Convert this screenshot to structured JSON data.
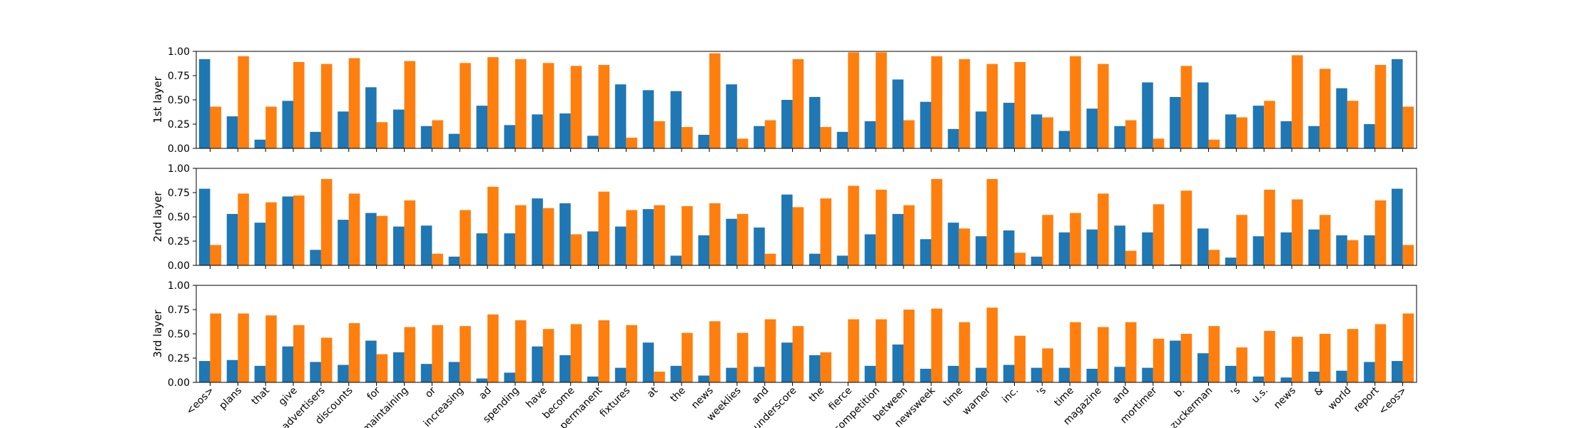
{
  "chart_data": [
    {
      "type": "bar",
      "ylabel": "1st layer",
      "ylim": [
        0,
        1
      ],
      "yticks": [
        "0.00",
        "0.25",
        "0.50",
        "0.75",
        "1.00"
      ],
      "categories": [
        "<eos>",
        "plans",
        "that",
        "give",
        "advertisers",
        "discounts",
        "for",
        "maintaining",
        "or",
        "increasing",
        "ad",
        "spending",
        "have",
        "become",
        "permanent",
        "fixtures",
        "at",
        "the",
        "news",
        "weeklies",
        "and",
        "underscore",
        "the",
        "fierce",
        "competition",
        "between",
        "newsweek",
        "time",
        "warner",
        "inc.",
        "'s",
        "time",
        "magazine",
        "and",
        "mortimer",
        "b.",
        "zuckerman",
        "'s",
        "u.s.",
        "news",
        "&",
        "world",
        "report",
        "<eos>"
      ],
      "series": [
        {
          "color": "#1f77b4",
          "values": [
            0.92,
            0.33,
            0.09,
            0.49,
            0.17,
            0.38,
            0.63,
            0.4,
            0.23,
            0.15,
            0.44,
            0.24,
            0.35,
            0.36,
            0.13,
            0.66,
            0.6,
            0.59,
            0.14,
            0.66,
            0.23,
            0.5,
            0.53,
            0.17,
            0.28,
            0.71,
            0.48,
            0.2,
            0.38,
            0.47,
            0.35,
            0.18,
            0.41,
            0.23,
            0.68,
            0.53,
            0.68,
            0.35,
            0.44,
            0.28,
            0.23,
            0.62,
            0.25,
            0.92
          ]
        },
        {
          "color": "#ff7f0e",
          "values": [
            0.43,
            0.95,
            0.43,
            0.89,
            0.87,
            0.93,
            0.27,
            0.9,
            0.29,
            0.88,
            0.94,
            0.92,
            0.88,
            0.85,
            0.86,
            0.11,
            0.28,
            0.22,
            0.98,
            0.1,
            0.29,
            0.92,
            0.22,
            0.99,
            0.99,
            0.29,
            0.95,
            0.92,
            0.87,
            0.89,
            0.32,
            0.95,
            0.87,
            0.29,
            0.1,
            0.85,
            0.09,
            0.32,
            0.49,
            0.96,
            0.82,
            0.49,
            0.86,
            0.43
          ]
        }
      ]
    },
    {
      "type": "bar",
      "ylabel": "2nd layer",
      "ylim": [
        0,
        1
      ],
      "yticks": [
        "0.00",
        "0.25",
        "0.50",
        "0.75",
        "1.00"
      ],
      "categories": [
        "<eos>",
        "plans",
        "that",
        "give",
        "advertisers",
        "discounts",
        "for",
        "maintaining",
        "or",
        "increasing",
        "ad",
        "spending",
        "have",
        "become",
        "permanent",
        "fixtures",
        "at",
        "the",
        "news",
        "weeklies",
        "and",
        "underscore",
        "the",
        "fierce",
        "competition",
        "between",
        "newsweek",
        "time",
        "warner",
        "inc.",
        "'s",
        "time",
        "magazine",
        "and",
        "mortimer",
        "b.",
        "zuckerman",
        "'s",
        "u.s.",
        "news",
        "&",
        "world",
        "report",
        "<eos>"
      ],
      "series": [
        {
          "color": "#1f77b4",
          "values": [
            0.79,
            0.53,
            0.44,
            0.71,
            0.16,
            0.47,
            0.54,
            0.4,
            0.41,
            0.09,
            0.33,
            0.33,
            0.69,
            0.64,
            0.35,
            0.4,
            0.58,
            0.1,
            0.31,
            0.48,
            0.39,
            0.73,
            0.12,
            0.1,
            0.32,
            0.53,
            0.27,
            0.44,
            0.3,
            0.36,
            0.09,
            0.34,
            0.37,
            0.41,
            0.34,
            0.01,
            0.38,
            0.08,
            0.3,
            0.34,
            0.37,
            0.31,
            0.31,
            0.79
          ]
        },
        {
          "color": "#ff7f0e",
          "values": [
            0.21,
            0.74,
            0.65,
            0.72,
            0.89,
            0.74,
            0.51,
            0.67,
            0.12,
            0.57,
            0.81,
            0.62,
            0.59,
            0.32,
            0.76,
            0.57,
            0.62,
            0.61,
            0.64,
            0.53,
            0.12,
            0.6,
            0.69,
            0.82,
            0.78,
            0.62,
            0.89,
            0.38,
            0.89,
            0.13,
            0.52,
            0.54,
            0.74,
            0.15,
            0.63,
            0.77,
            0.16,
            0.52,
            0.78,
            0.68,
            0.52,
            0.26,
            0.67,
            0.21
          ]
        }
      ]
    },
    {
      "type": "bar",
      "ylabel": "3rd layer",
      "ylim": [
        0,
        1
      ],
      "yticks": [
        "0.00",
        "0.25",
        "0.50",
        "0.75",
        "1.00"
      ],
      "categories": [
        "<eos>",
        "plans",
        "that",
        "give",
        "advertisers",
        "discounts",
        "for",
        "maintaining",
        "or",
        "increasing",
        "ad",
        "spending",
        "have",
        "become",
        "permanent",
        "fixtures",
        "at",
        "the",
        "news",
        "weeklies",
        "and",
        "underscore",
        "the",
        "fierce",
        "competition",
        "between",
        "newsweek",
        "time",
        "warner",
        "inc.",
        "'s",
        "time",
        "magazine",
        "and",
        "mortimer",
        "b.",
        "zuckerman",
        "'s",
        "u.s.",
        "news",
        "&",
        "world",
        "report",
        "<eos>"
      ],
      "series": [
        {
          "color": "#1f77b4",
          "values": [
            0.22,
            0.23,
            0.17,
            0.37,
            0.21,
            0.18,
            0.43,
            0.31,
            0.19,
            0.21,
            0.04,
            0.1,
            0.37,
            0.28,
            0.06,
            0.15,
            0.41,
            0.17,
            0.07,
            0.15,
            0.16,
            0.41,
            0.28,
            0.0,
            0.17,
            0.39,
            0.14,
            0.17,
            0.15,
            0.18,
            0.15,
            0.15,
            0.14,
            0.16,
            0.15,
            0.43,
            0.3,
            0.17,
            0.06,
            0.05,
            0.11,
            0.12,
            0.21,
            0.22
          ]
        },
        {
          "color": "#ff7f0e",
          "values": [
            0.71,
            0.71,
            0.69,
            0.59,
            0.46,
            0.61,
            0.29,
            0.57,
            0.59,
            0.58,
            0.7,
            0.64,
            0.55,
            0.6,
            0.64,
            0.59,
            0.11,
            0.51,
            0.63,
            0.51,
            0.65,
            0.58,
            0.31,
            0.65,
            0.65,
            0.75,
            0.76,
            0.62,
            0.77,
            0.48,
            0.35,
            0.62,
            0.57,
            0.62,
            0.45,
            0.5,
            0.58,
            0.36,
            0.53,
            0.47,
            0.5,
            0.55,
            0.6,
            0.71
          ]
        }
      ]
    }
  ]
}
